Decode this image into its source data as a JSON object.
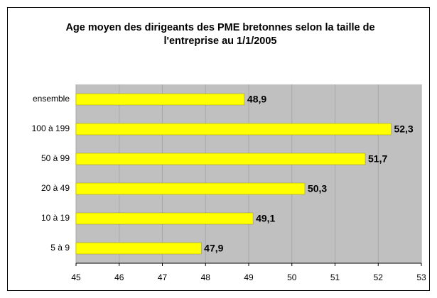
{
  "chart_data": {
    "type": "bar",
    "orientation": "horizontal",
    "title": "Age moyen des dirigeants des PME bretonnes selon la taille de l'entreprise au 1/1/2005",
    "categories": [
      "ensemble",
      "100 à 199",
      "50 à 99",
      "20 à 49",
      "10 à 19",
      "5 à 9"
    ],
    "values": [
      48.9,
      52.3,
      51.7,
      50.3,
      49.1,
      47.9
    ],
    "value_labels": [
      "48,9",
      "52,3",
      "51,7",
      "50,3",
      "49,1",
      "47,9"
    ],
    "color": "#ffff00",
    "xlim": [
      45,
      53
    ],
    "xticks": [
      45,
      46,
      47,
      48,
      49,
      50,
      51,
      52,
      53
    ],
    "grid": true
  }
}
